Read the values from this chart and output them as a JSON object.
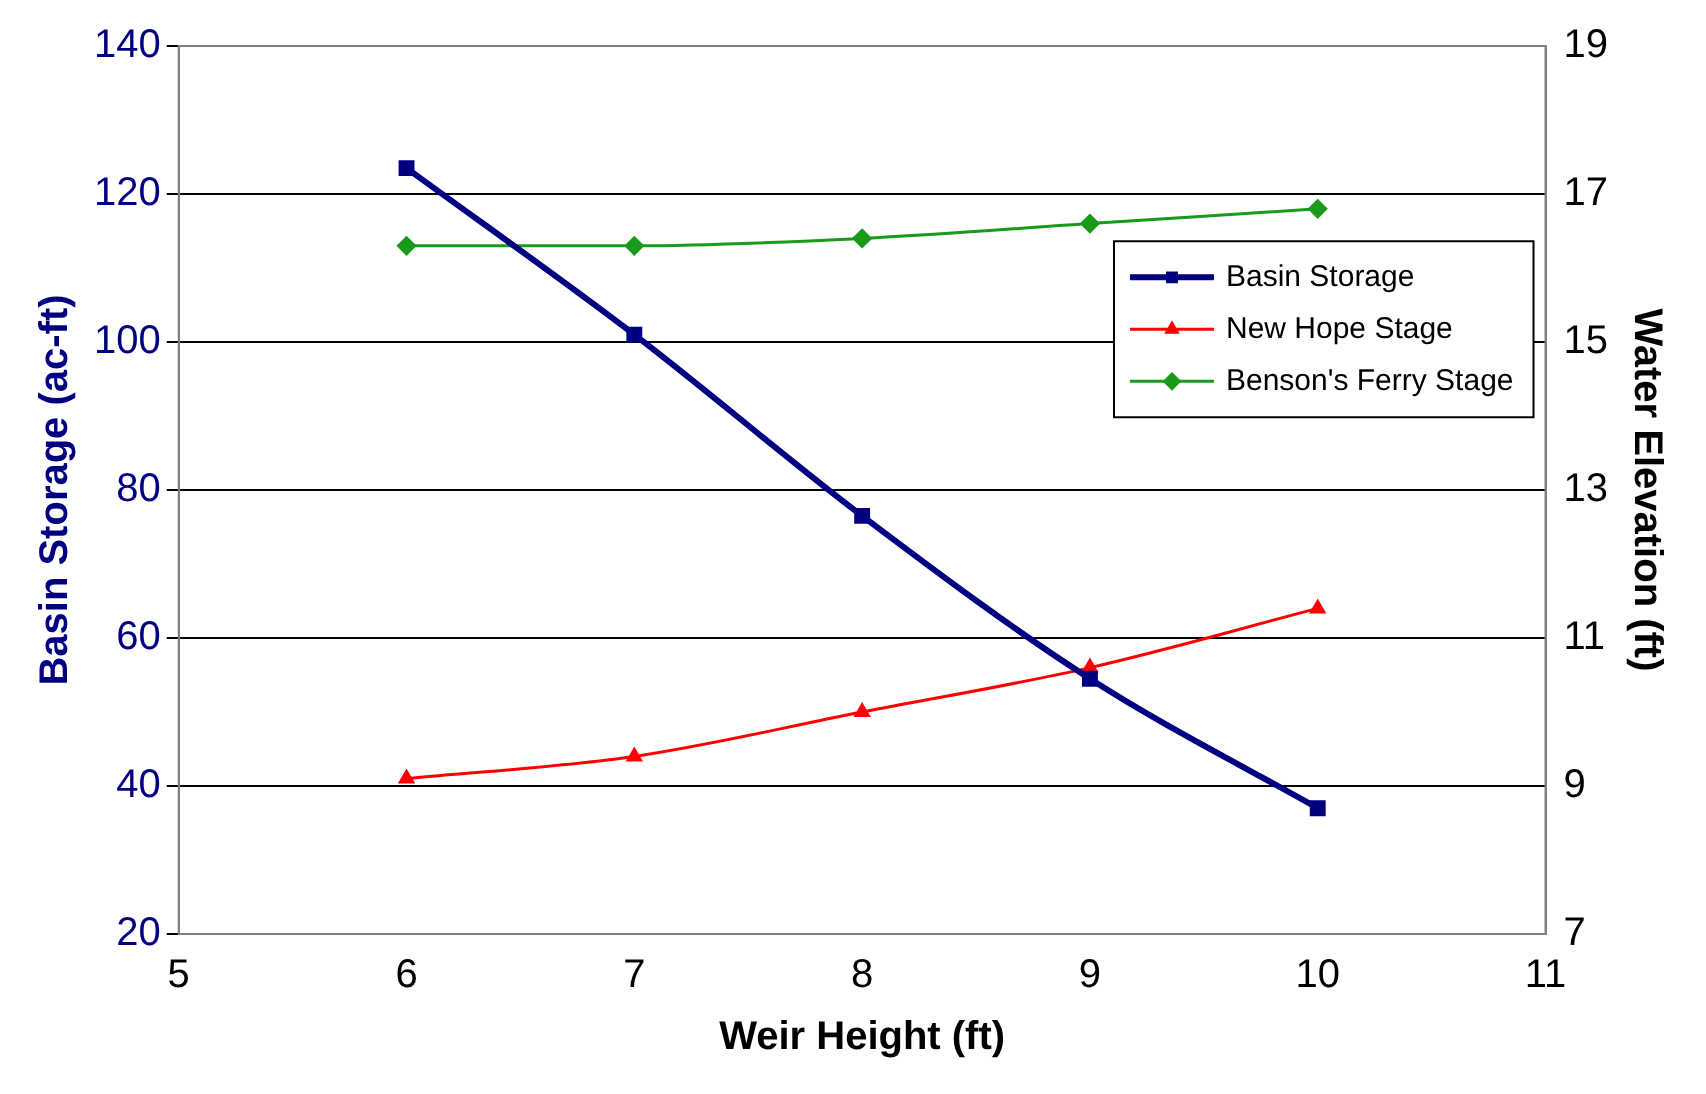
{
  "chart_data": {
    "type": "line",
    "xlabel": "Weir Height (ft)",
    "ylabel": "Basin Storage (ac-ft)",
    "y2label": "Water Elevation (ft)",
    "x": [
      6,
      7,
      8,
      9,
      10
    ],
    "series": [
      {
        "name": "Basin Storage",
        "color": "#000080",
        "marker": "square",
        "values": [
          123.5,
          101,
          76.5,
          54.5,
          37
        ]
      },
      {
        "name": "New Hope Stage",
        "color": "#ff0000",
        "marker": "triangle",
        "axis": "y2",
        "values": [
          9.1,
          9.4,
          10,
          10.6,
          11.4
        ]
      },
      {
        "name": "Benson's Ferry Stage",
        "color": "#1a9a1a",
        "marker": "diamond",
        "axis": "y2",
        "values": [
          16.3,
          16.3,
          16.4,
          16.6,
          16.8
        ]
      }
    ],
    "xlim": [
      5,
      11
    ],
    "xticks": [
      5,
      6,
      7,
      8,
      9,
      10,
      11
    ],
    "ylim": [
      20,
      140
    ],
    "yticks": [
      20,
      40,
      60,
      80,
      100,
      120,
      140
    ],
    "y2lim": [
      7,
      19
    ],
    "y2ticks": [
      7,
      9,
      11,
      13,
      15,
      17,
      19
    ],
    "grid": "y",
    "legend": "right"
  }
}
